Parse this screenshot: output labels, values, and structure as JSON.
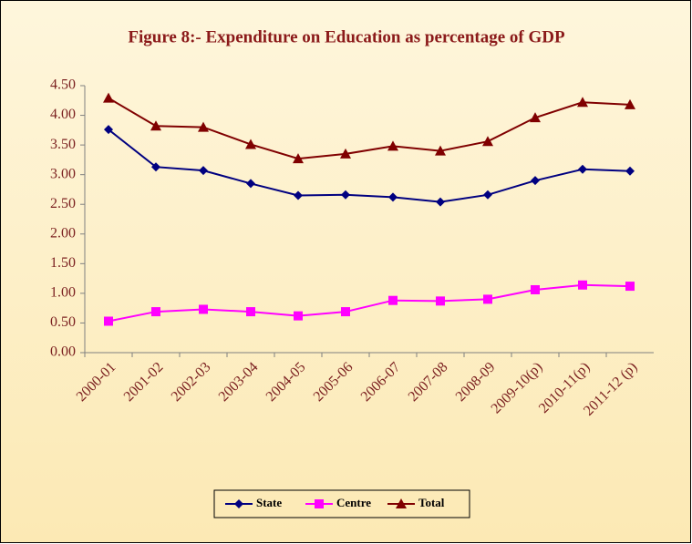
{
  "chart_data": {
    "type": "line",
    "title": "Figure 8:- Expenditure on Education as percentage of  GDP",
    "categories": [
      "2000-01",
      "2001-02",
      "2002-03",
      "2003-04",
      "2004-05",
      "2005-06",
      "2006-07",
      "2007-08",
      "2008-09",
      "2009-10(p)",
      "2010-11(p)",
      "2011-12 (p)"
    ],
    "series": [
      {
        "name": "State",
        "color": "#000080",
        "marker": "diamond",
        "values": [
          3.76,
          3.13,
          3.07,
          2.85,
          2.65,
          2.66,
          2.62,
          2.54,
          2.66,
          2.9,
          3.09,
          3.06
        ]
      },
      {
        "name": "Centre",
        "color": "#ff00ff",
        "marker": "square",
        "values": [
          0.53,
          0.69,
          0.73,
          0.69,
          0.62,
          0.69,
          0.88,
          0.87,
          0.9,
          1.06,
          1.14,
          1.12
        ]
      },
      {
        "name": "Total",
        "color": "#800000",
        "marker": "triangle",
        "values": [
          4.29,
          3.82,
          3.8,
          3.51,
          3.27,
          3.35,
          3.48,
          3.4,
          3.56,
          3.96,
          4.22,
          4.18
        ]
      }
    ],
    "ylim": [
      0,
      4.5
    ],
    "yticks": [
      {
        "value": 0,
        "label": "0.00"
      },
      {
        "value": 0.5,
        "label": "0.50"
      },
      {
        "value": 1,
        "label": "1.00"
      },
      {
        "value": 1.5,
        "label": "1.50"
      },
      {
        "value": 2,
        "label": "2.00"
      },
      {
        "value": 2.5,
        "label": "2.50"
      },
      {
        "value": 3,
        "label": "3.00"
      },
      {
        "value": 3.5,
        "label": "3.50"
      },
      {
        "value": 4,
        "label": "4.00"
      },
      {
        "value": 4.5,
        "label": "4.50"
      }
    ],
    "grid": false,
    "legend": "bottom"
  }
}
